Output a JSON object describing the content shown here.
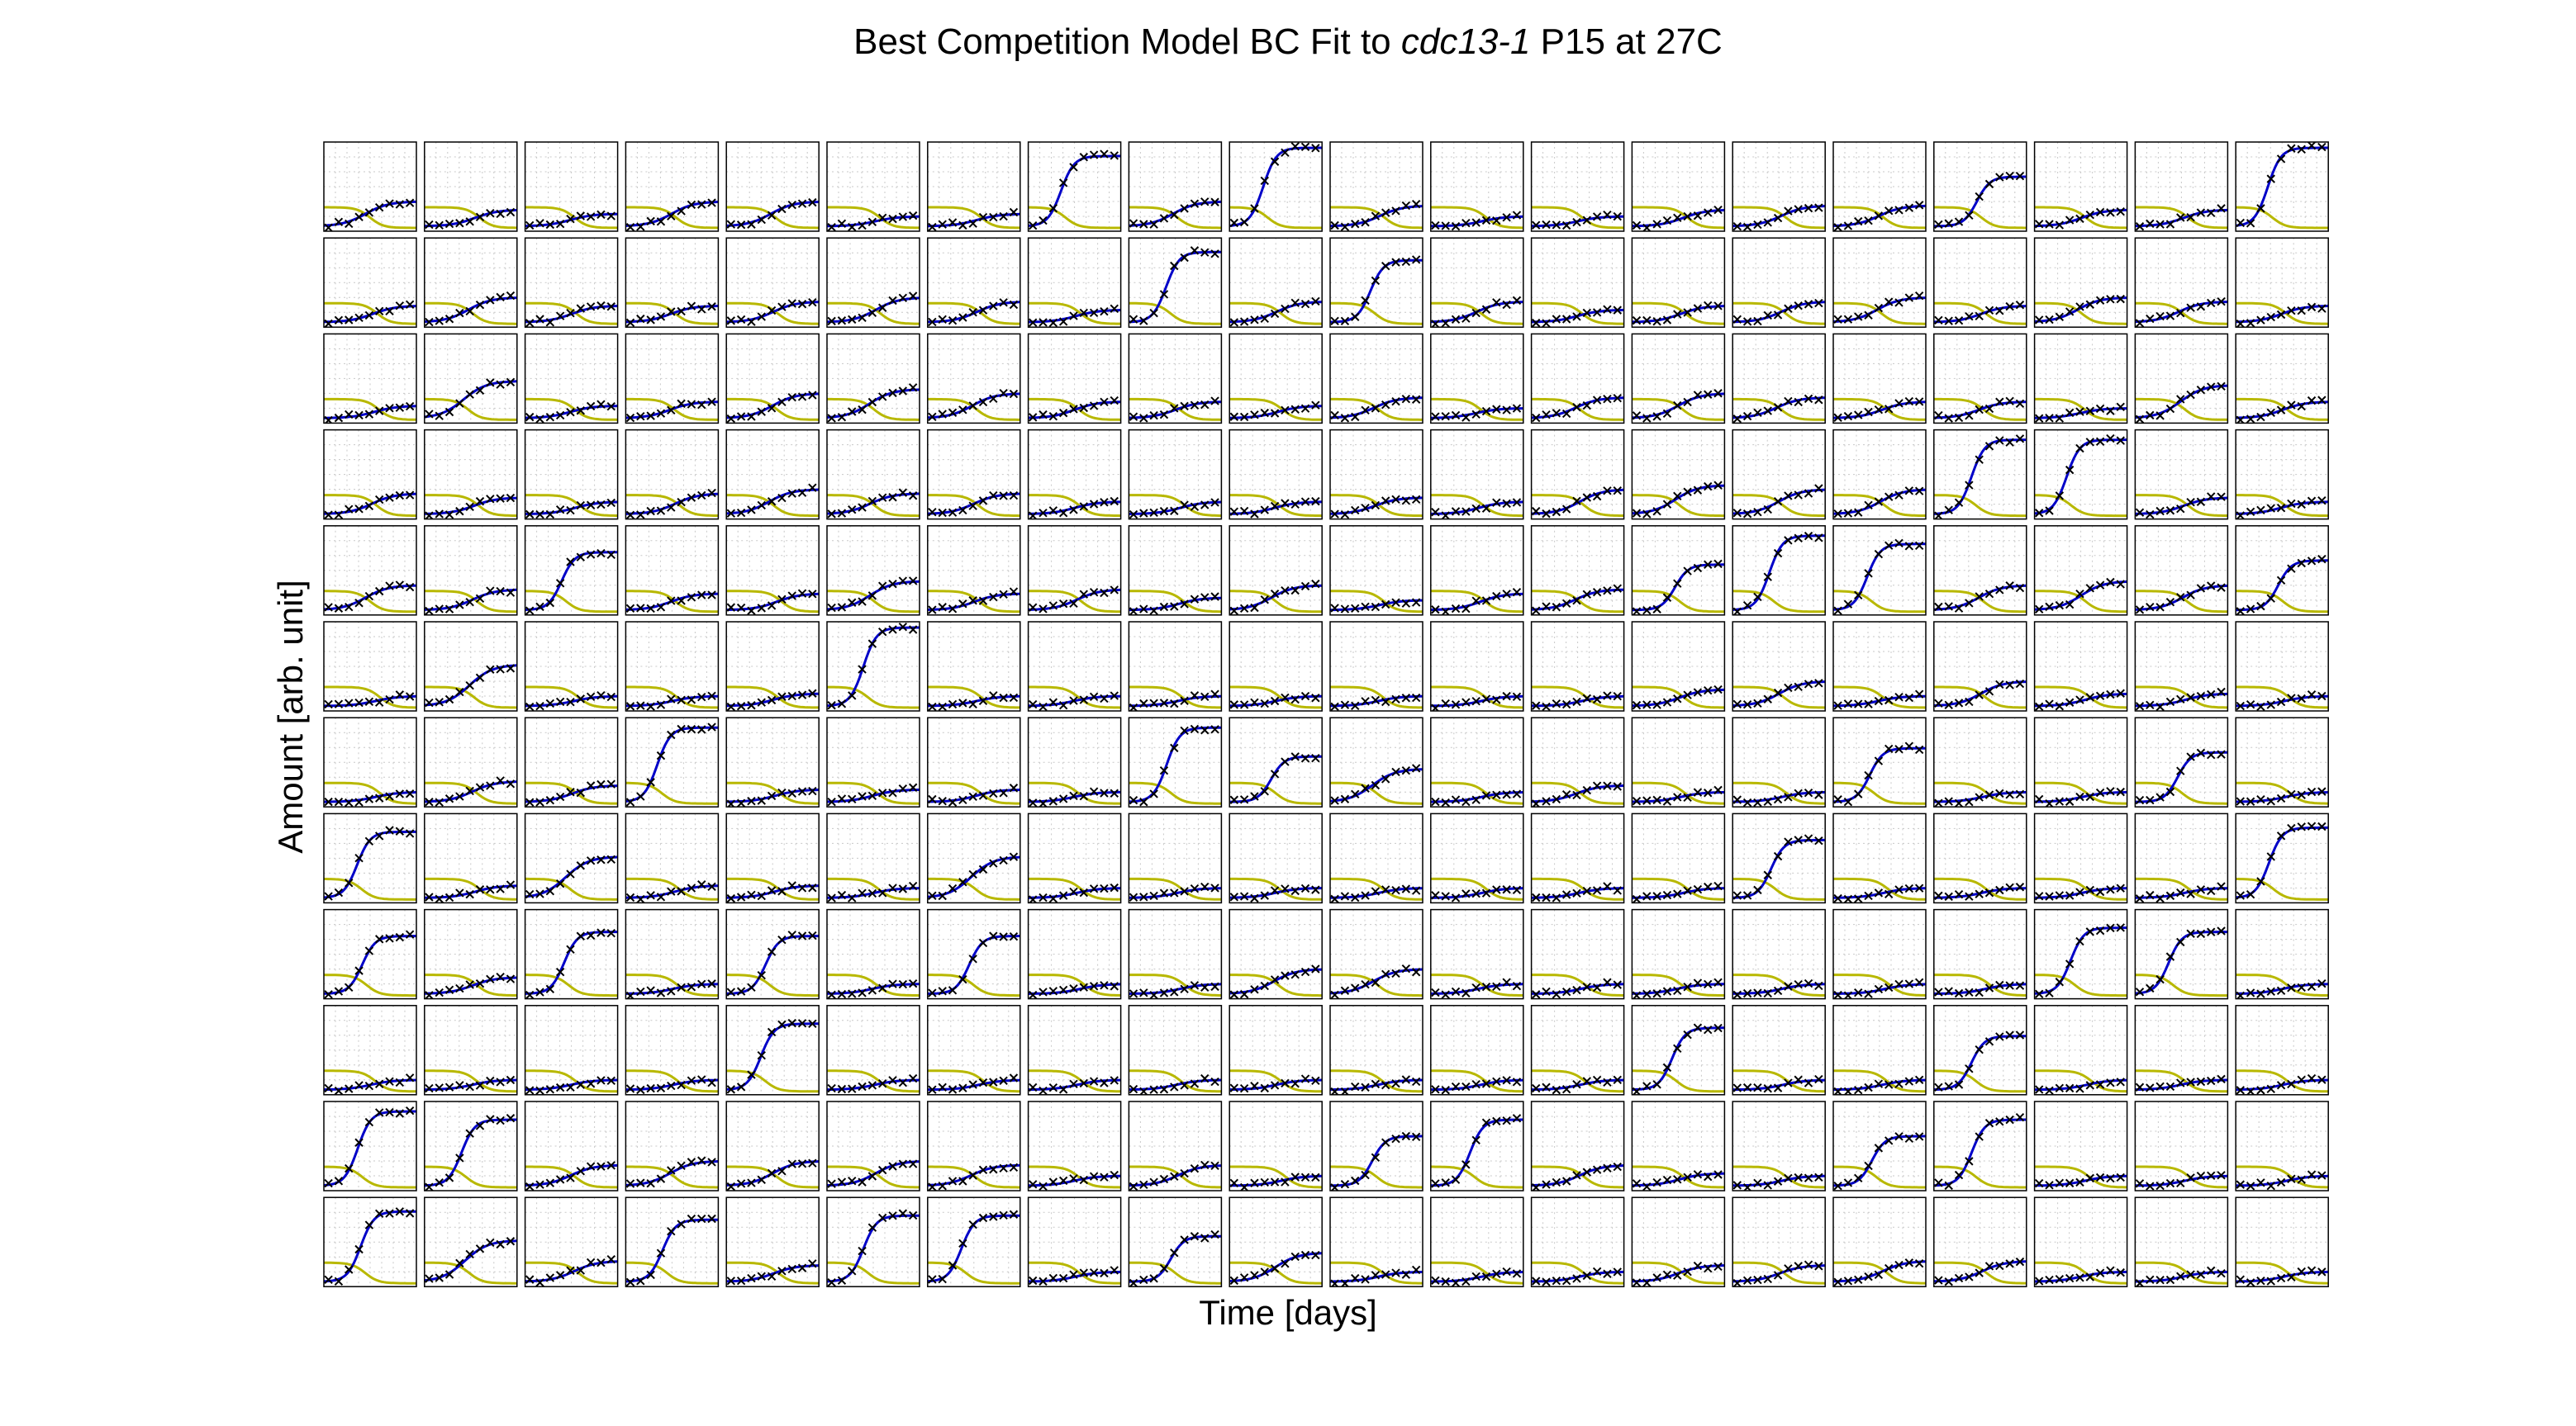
{
  "title": {
    "prefix": "Best Competition Model BC Fit to ",
    "strain": "cdc13-1",
    "suffix": " P15 at 27C"
  },
  "xlabel": "Time [days]",
  "ylabel": "Amount [arb. unit]",
  "colors": {
    "model_fit": "#0000c8",
    "observed": "#000000",
    "competitor": "#b8b800",
    "grid": "#c8c8c8",
    "frame": "#000000"
  },
  "chart_data": {
    "type": "line",
    "rows": 12,
    "cols": 20,
    "grid": true,
    "series_styles": {
      "fit": "line",
      "observed": "x-markers",
      "competitor": "line"
    },
    "growth_levels": [
      [
        0.3,
        0.2,
        0.15,
        0.3,
        0.3,
        0.12,
        0.15,
        0.85,
        0.3,
        0.95,
        0.25,
        0.12,
        0.12,
        0.2,
        0.25,
        0.25,
        0.6,
        0.2,
        0.2,
        0.95
      ],
      [
        0.2,
        0.3,
        0.2,
        0.2,
        0.25,
        0.3,
        0.25,
        0.15,
        0.85,
        0.25,
        0.75,
        0.25,
        0.15,
        0.2,
        0.25,
        0.3,
        0.2,
        0.3,
        0.25,
        0.2
      ],
      [
        0.15,
        0.45,
        0.15,
        0.2,
        0.3,
        0.35,
        0.3,
        0.2,
        0.2,
        0.15,
        0.25,
        0.12,
        0.25,
        0.3,
        0.25,
        0.2,
        0.2,
        0.12,
        0.4,
        0.2
      ],
      [
        0.25,
        0.2,
        0.15,
        0.25,
        0.3,
        0.25,
        0.25,
        0.15,
        0.15,
        0.15,
        0.2,
        0.15,
        0.3,
        0.35,
        0.3,
        0.3,
        0.9,
        0.9,
        0.2,
        0.15
      ],
      [
        0.3,
        0.25,
        0.7,
        0.2,
        0.2,
        0.35,
        0.2,
        0.25,
        0.15,
        0.3,
        0.12,
        0.2,
        0.25,
        0.55,
        0.9,
        0.8,
        0.3,
        0.35,
        0.3,
        0.6
      ],
      [
        0.12,
        0.5,
        0.12,
        0.12,
        0.15,
        0.95,
        0.12,
        0.12,
        0.12,
        0.12,
        0.12,
        0.12,
        0.12,
        0.2,
        0.3,
        0.12,
        0.3,
        0.15,
        0.15,
        0.12
      ],
      [
        0.12,
        0.25,
        0.2,
        0.9,
        0.15,
        0.15,
        0.15,
        0.12,
        0.9,
        0.55,
        0.4,
        0.12,
        0.2,
        0.12,
        0.12,
        0.65,
        0.12,
        0.12,
        0.6,
        0.12
      ],
      [
        0.8,
        0.15,
        0.5,
        0.15,
        0.15,
        0.12,
        0.5,
        0.12,
        0.12,
        0.12,
        0.12,
        0.12,
        0.12,
        0.12,
        0.7,
        0.12,
        0.12,
        0.12,
        0.12,
        0.85
      ],
      [
        0.7,
        0.2,
        0.75,
        0.12,
        0.7,
        0.12,
        0.7,
        0.12,
        0.12,
        0.3,
        0.3,
        0.12,
        0.12,
        0.12,
        0.12,
        0.12,
        0.12,
        0.8,
        0.75,
        0.12
      ],
      [
        0.12,
        0.12,
        0.12,
        0.12,
        0.8,
        0.12,
        0.12,
        0.12,
        0.12,
        0.12,
        0.12,
        0.12,
        0.12,
        0.75,
        0.12,
        0.12,
        0.65,
        0.12,
        0.12,
        0.12
      ],
      [
        0.9,
        0.8,
        0.25,
        0.3,
        0.3,
        0.3,
        0.25,
        0.12,
        0.25,
        0.12,
        0.6,
        0.8,
        0.25,
        0.15,
        0.12,
        0.6,
        0.8,
        0.12,
        0.12,
        0.12
      ],
      [
        0.85,
        0.5,
        0.25,
        0.75,
        0.2,
        0.8,
        0.8,
        0.12,
        0.55,
        0.35,
        0.12,
        0.12,
        0.12,
        0.2,
        0.2,
        0.25,
        0.25,
        0.12,
        0.12,
        0.12
      ]
    ],
    "competitor_level": 0.25
  }
}
